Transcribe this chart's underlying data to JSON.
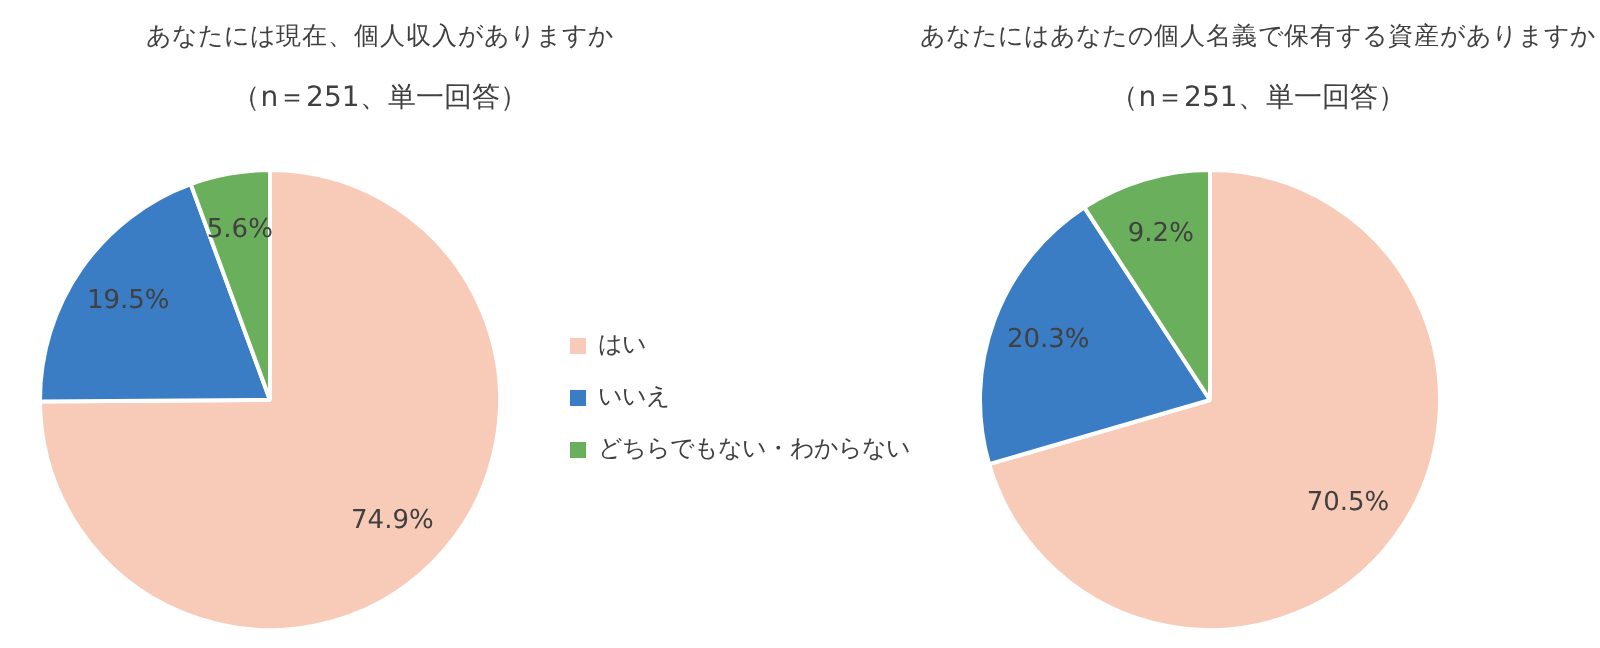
{
  "chart_data": [
    {
      "type": "pie",
      "title": "あなたには現在、個人収入がありますか",
      "subtitle": "（n＝251、単一回答）",
      "categories": [
        "はい",
        "いいえ",
        "どちらでもない・わからない"
      ],
      "values": [
        74.9,
        19.5,
        5.6
      ],
      "value_labels": [
        "74.9%",
        "19.5%",
        "5.6%"
      ],
      "colors": [
        "#f8cbb8",
        "#3b7dc4",
        "#6ab05c"
      ],
      "legend": "right"
    },
    {
      "type": "pie",
      "title": "あなたにはあなたの個人名義で保有する資産がありますか",
      "subtitle": "（n＝251、単一回答）",
      "categories": [
        null,
        null,
        null
      ],
      "values": [
        70.5,
        20.3,
        9.2
      ],
      "value_labels": [
        "70.5%",
        "20.3%",
        "9.2%"
      ],
      "colors": [
        "#f8cbb8",
        "#3b7dc4",
        "#6ab05c"
      ]
    }
  ]
}
